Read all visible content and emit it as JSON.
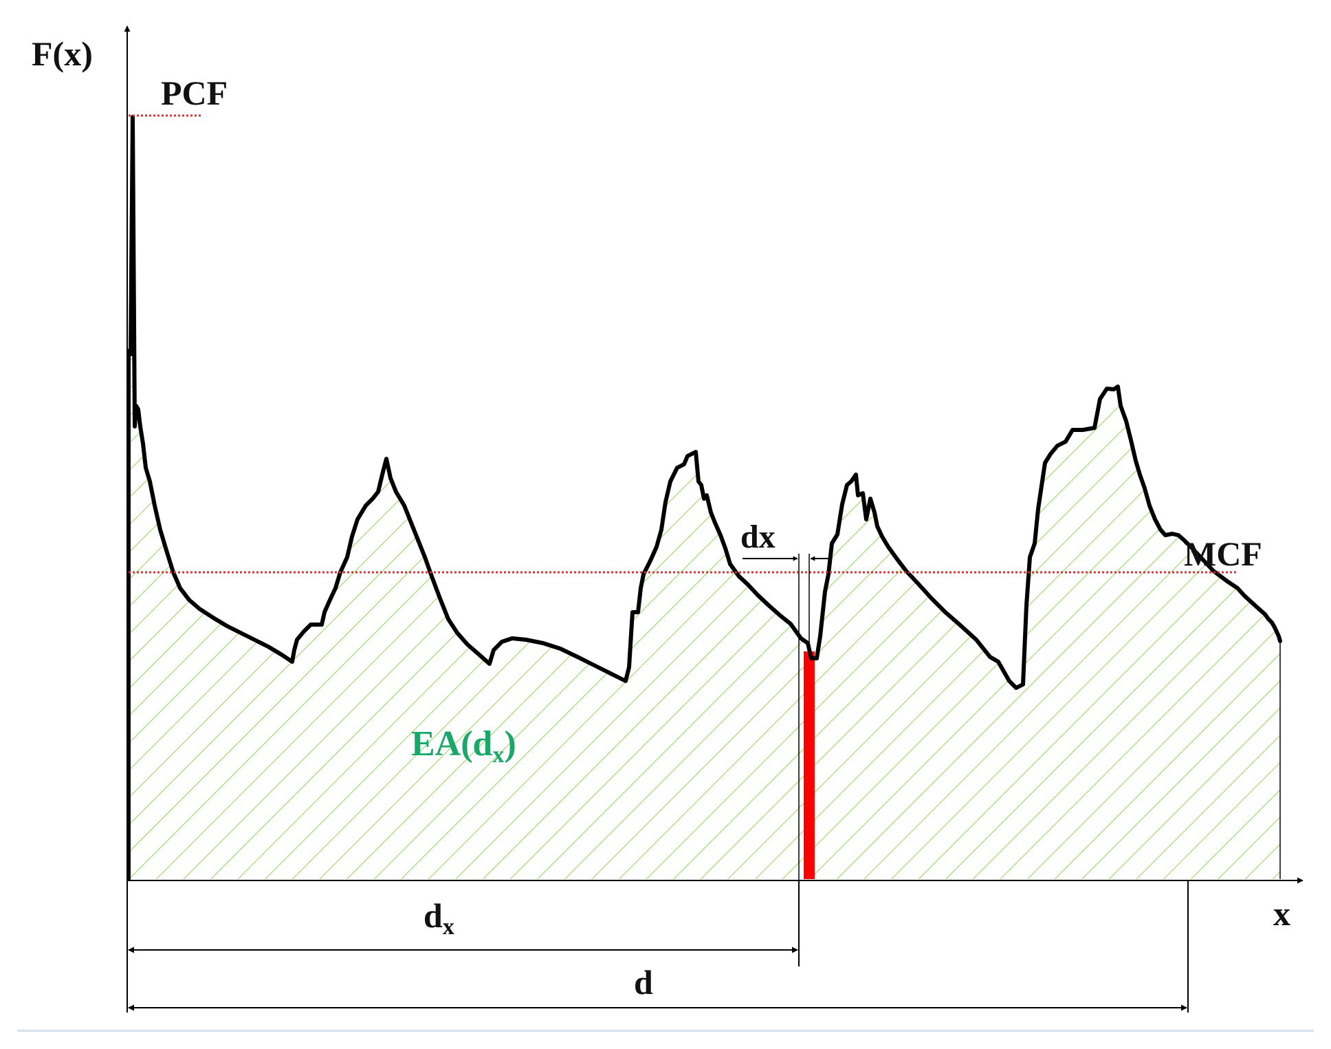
{
  "labels": {
    "y_axis": "F(x)",
    "x_axis": "x",
    "pcf": "PCF",
    "mcf": "MCF",
    "dx": "dx",
    "ea_main": "EA(d",
    "ea_sub": "x",
    "ea_close": ")",
    "dx_dim_main": "d",
    "dx_dim_sub": "x",
    "d_dim": "d"
  },
  "colors": {
    "curve": "#000000",
    "hatch": "#8fd45a",
    "reference_lines": "#ff2020",
    "strip": "#ff0000",
    "ea_label": "#1aa86a"
  }
}
